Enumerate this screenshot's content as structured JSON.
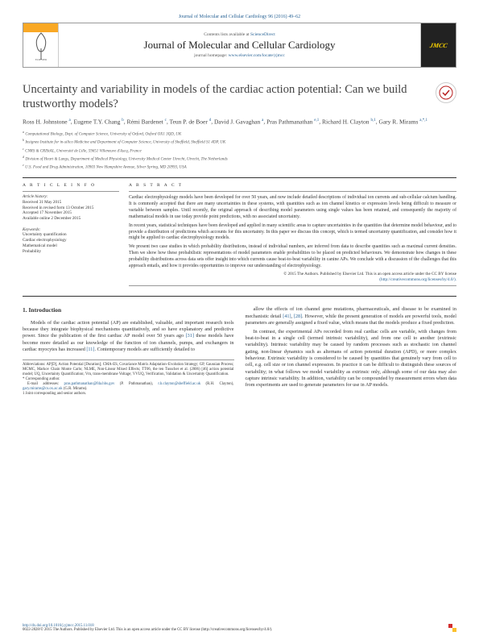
{
  "top_link": "Journal of Molecular and Cellular Cardiology 96 (2016) 49–62",
  "header": {
    "contents_line_prefix": "Contents lists available at ",
    "contents_link": "ScienceDirect",
    "journal_name": "Journal of Molecular and Cellular Cardiology",
    "journal_home_prefix": "journal homepage: ",
    "journal_home_link": "www.elsevier.com/locate/yjmcc",
    "publisher_logo_text": "ELSEVIER",
    "cover_text": "JMCC"
  },
  "title": "Uncertainty and variability in models of the cardiac action potential: Can we build trustworthy models?",
  "crossmark": "CrossMark",
  "authors_html": "Ross H. Johnstone <sup>a</sup>, Eugene T.Y. Chang <sup>b</sup>, Rémi Bardenet <sup>c</sup>, Teun P. de Boer <sup>d</sup>, David J. Gavaghan <sup>a</sup>, Pras Pathmanathan <sup>e,1</sup>, Richard H. Clayton <sup>b,1</sup>, Gary R. Mirams <sup>a,*,1</sup>",
  "affiliations": [
    "a Computational Biology, Dept. of Computer Science, University of Oxford, Oxford OX1 3QD, UK",
    "b Insigneo Institute for in-silico Medicine and Department of Computer Science, University of Sheffield, Sheffield S1 4DP, UK",
    "c CNRS & CRIStAL, Université de Lille, 59651 Villeneuve d'Ascq, France",
    "d Division of Heart & Lungs, Department of Medical Physiology, University Medical Center Utrecht, Utrecht, The Netherlands",
    "e U.S. Food and Drug Administration, 10903 New Hampshire Avenue, Silver Spring, MD 20993, USA"
  ],
  "article_info": {
    "header": "A R T I C L E   I N F O",
    "history_header": "Article history:",
    "history": [
      "Received 31 May 2015",
      "Received in revised form 13 October 2015",
      "Accepted 17 November 2015",
      "Available online 2 December 2015"
    ],
    "keywords_header": "Keywords:",
    "keywords": [
      "Uncertainty quantification",
      "Cardiac electrophysiology",
      "Mathematical model",
      "Probability"
    ]
  },
  "abstract": {
    "header": "A B S T R A C T",
    "paragraphs": [
      "Cardiac electrophysiology models have been developed for over 50 years, and now include detailed descriptions of individual ion currents and sub-cellular calcium handling. It is commonly accepted that there are many uncertainties in these systems, with quantities such as ion channel kinetics or expression levels being difficult to measure or variable between samples. Until recently, the original approach of describing model parameters using single values has been retained, and consequently the majority of mathematical models in use today provide point predictions, with no associated uncertainty.",
      "In recent years, statistical techniques have been developed and applied in many scientific areas to capture uncertainties in the quantities that determine model behaviour, and to provide a distribution of predictions which accounts for this uncertainty. In this paper we discuss this concept, which is termed uncertainty quantification, and consider how it might be applied to cardiac electrophysiology models.",
      "We present two case studies in which probability distributions, instead of individual numbers, are inferred from data to describe quantities such as maximal current densities. Then we show how these probabilistic representations of model parameters enable probabilities to be placed on predicted behaviours. We demonstrate how changes in these probability distributions across data sets offer insight into which currents cause beat-to-beat variability in canine APs. We conclude with a discussion of the challenges that this approach entails, and how it provides opportunities to improve our understanding of electrophysiology."
    ],
    "copyright": "© 2015 The Authors. Published by Elsevier Ltd. This is an open access article under the CC BY license",
    "license_link": "(http://creativecommons.org/licenses/by/4.0/)."
  },
  "body": {
    "section_title": "1. Introduction",
    "left_paragraphs": [
      "Models of the cardiac action potential (AP) are established, valuable, and important research tools because they integrate biophysical mechanisms quantitatively, and so have explanatory and predictive power. Since the publication of the first cardiac AP model over 50 years ago [31] these models have become more detailed as our knowledge of the function of ion channels, pumps, and exchangers in cardiac myocytes has increased [11]. Contemporary models are sufficiently detailed to"
    ],
    "right_paragraphs": [
      "allow the effects of ion channel gene mutations, pharmaceuticals, and disease to be examined in mechanistic detail [41], [28]. However, while the present generation of models are powerful tools, model parameters are generally assigned a fixed value, which means that the models produce a fixed prediction.",
      "In contrast, the experimental APs recorded from real cardiac cells are variable, with changes from beat-to-beat in a single cell (termed intrinsic variability), and from one cell to another (extrinsic variability). Intrinsic variability may be caused by random processes such as stochastic ion channel gating, non-linear dynamics such as alternans of action potential duration (APD), or more complex behaviour. Extrinsic variability is considered to be caused by quantities that genuinely vary from cell to cell, e.g. cell size or ion channel expression. In practice it can be difficult to distinguish these sources of variability; in what follows we model variability as extrinsic only, although some of our data may also capture intrinsic variability. In addition, variability can be compounded by measurement errors when data from experiments are used to generate parameters for use in AP models."
    ]
  },
  "footnotes": {
    "abbrev": "Abbreviations: AP[D], Action Potential [Duration]; CMA-ES, Covariance Matrix Adaptation–Evolution Strategy; GP, Gaussian Process; MCMC, Markov Chain Monte Carlo; NLME, Non-Linear Mixed Effects; TT06, the ten Tusscher et al. (2006) [46] action potential model; UQ, Uncertainty Quantification; Vm, trans-membrane Voltage; VVUQ, Verification, Validation & Uncertainty Quantification.",
    "corr": "* Corresponding author.",
    "emails": "E-mail addresses: pras.pathmanathan@fda.hhs.gov (P. Pathmanathan), r.h.clayton@sheffield.ac.uk (R.H. Clayton), gary.mirams@cs.ox.ac.uk (G.R. Mirams).",
    "joint": "1 Joint corresponding and senior authors."
  },
  "footer": {
    "doi": "http://dx.doi.org/10.1016/j.yjmcc.2015.11.018",
    "issn_line": "0022-2828/© 2015 The Authors. Published by Elsevier Ltd. This is an open access article under the CC BY license (http://creativecommons.org/licenses/by/4.0/)."
  },
  "colors": {
    "link": "#2a6496",
    "text": "#333333",
    "heading": "#424242",
    "elsevier_orange": "#f9a825",
    "cover_bg": "#222222",
    "cover_text": "#FFD700"
  }
}
